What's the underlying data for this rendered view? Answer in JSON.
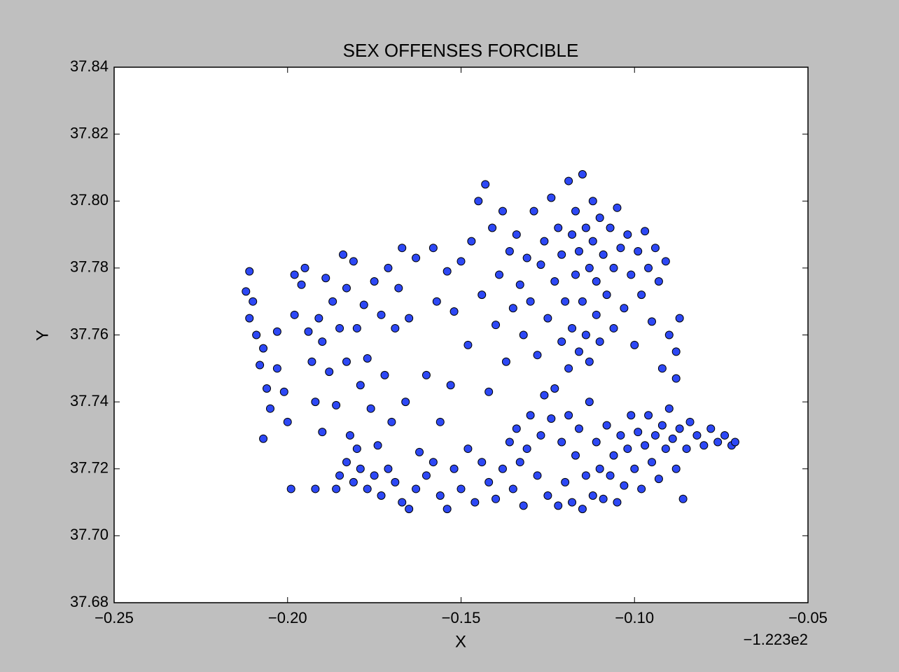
{
  "chart_data": {
    "type": "scatter",
    "title": "SEX OFFENSES FORCIBLE",
    "x_label": "X",
    "y_label": "Y",
    "x_offset_label": "−1.223e2",
    "color": "#2d48f5",
    "xlim": [
      -0.25,
      -0.05
    ],
    "xticks": [
      {
        "value": -0.25,
        "label": "−0.25"
      },
      {
        "value": -0.2,
        "label": "−0.20"
      },
      {
        "value": -0.15,
        "label": "−0.15"
      },
      {
        "value": -0.1,
        "label": "−0.10"
      },
      {
        "value": -0.05,
        "label": "−0.05"
      }
    ],
    "ylim": [
      37.68,
      37.84
    ],
    "yticks": [
      37.68,
      {
        "value": 37.7,
        "label": "37.70"
      },
      37.72,
      37.74,
      37.76,
      37.78,
      {
        "value": 37.8,
        "label": "37.80"
      },
      37.82,
      37.84
    ],
    "x": [
      -0.211,
      -0.212,
      -0.21,
      -0.211,
      -0.209,
      -0.207,
      -0.208,
      -0.206,
      -0.205,
      -0.207,
      -0.203,
      -0.203,
      -0.201,
      -0.2,
      -0.199,
      -0.198,
      -0.198,
      -0.196,
      -0.195,
      -0.194,
      -0.193,
      -0.192,
      -0.192,
      -0.191,
      -0.19,
      -0.19,
      -0.189,
      -0.188,
      -0.187,
      -0.186,
      -0.185,
      -0.184,
      -0.183,
      -0.183,
      -0.182,
      -0.181,
      -0.18,
      -0.179,
      -0.178,
      -0.177,
      -0.176,
      -0.175,
      -0.174,
      -0.173,
      -0.172,
      -0.171,
      -0.17,
      -0.169,
      -0.168,
      -0.167,
      -0.166,
      -0.165,
      -0.163,
      -0.162,
      -0.16,
      -0.158,
      -0.157,
      -0.156,
      -0.154,
      -0.153,
      -0.152,
      -0.15,
      -0.148,
      -0.147,
      -0.145,
      -0.144,
      -0.143,
      -0.142,
      -0.141,
      -0.14,
      -0.139,
      -0.138,
      -0.137,
      -0.136,
      -0.135,
      -0.134,
      -0.133,
      -0.132,
      -0.131,
      -0.13,
      -0.129,
      -0.128,
      -0.127,
      -0.126,
      -0.125,
      -0.124,
      -0.123,
      -0.122,
      -0.121,
      -0.121,
      -0.12,
      -0.119,
      -0.119,
      -0.118,
      -0.118,
      -0.117,
      -0.117,
      -0.116,
      -0.116,
      -0.115,
      -0.115,
      -0.114,
      -0.114,
      -0.113,
      -0.113,
      -0.112,
      -0.112,
      -0.111,
      -0.111,
      -0.11,
      -0.11,
      -0.109,
      -0.108,
      -0.107,
      -0.106,
      -0.106,
      -0.105,
      -0.104,
      -0.103,
      -0.102,
      -0.101,
      -0.1,
      -0.099,
      -0.098,
      -0.097,
      -0.096,
      -0.095,
      -0.094,
      -0.093,
      -0.092,
      -0.091,
      -0.09,
      -0.088,
      -0.087,
      -0.088,
      -0.16,
      -0.158,
      -0.156,
      -0.154,
      -0.152,
      -0.15,
      -0.148,
      -0.146,
      -0.144,
      -0.142,
      -0.14,
      -0.138,
      -0.136,
      -0.135,
      -0.134,
      -0.133,
      -0.132,
      -0.131,
      -0.13,
      -0.128,
      -0.127,
      -0.126,
      -0.125,
      -0.124,
      -0.123,
      -0.122,
      -0.121,
      -0.12,
      -0.119,
      -0.118,
      -0.117,
      -0.116,
      -0.115,
      -0.114,
      -0.113,
      -0.112,
      -0.111,
      -0.11,
      -0.109,
      -0.108,
      -0.107,
      -0.106,
      -0.105,
      -0.104,
      -0.103,
      -0.102,
      -0.101,
      -0.1,
      -0.099,
      -0.098,
      -0.097,
      -0.096,
      -0.095,
      -0.094,
      -0.093,
      -0.092,
      -0.091,
      -0.09,
      -0.089,
      -0.088,
      -0.087,
      -0.086,
      -0.085,
      -0.084,
      -0.082,
      -0.08,
      -0.078,
      -0.076,
      -0.074,
      -0.072,
      -0.071,
      -0.185,
      -0.183,
      -0.181,
      -0.179,
      -0.177,
      -0.175,
      -0.173,
      -0.171,
      -0.169,
      -0.167,
      -0.165,
      -0.163,
      -0.18,
      -0.186
    ],
    "values": [
      37.779,
      37.773,
      37.77,
      37.765,
      37.76,
      37.756,
      37.751,
      37.744,
      37.738,
      37.729,
      37.75,
      37.761,
      37.743,
      37.734,
      37.714,
      37.766,
      37.778,
      37.775,
      37.78,
      37.761,
      37.752,
      37.74,
      37.714,
      37.765,
      37.758,
      37.731,
      37.777,
      37.749,
      37.77,
      37.739,
      37.762,
      37.784,
      37.774,
      37.752,
      37.73,
      37.782,
      37.762,
      37.745,
      37.769,
      37.753,
      37.738,
      37.776,
      37.727,
      37.766,
      37.748,
      37.78,
      37.734,
      37.762,
      37.774,
      37.786,
      37.74,
      37.765,
      37.783,
      37.725,
      37.748,
      37.786,
      37.77,
      37.734,
      37.779,
      37.745,
      37.767,
      37.782,
      37.757,
      37.788,
      37.8,
      37.772,
      37.805,
      37.743,
      37.792,
      37.763,
      37.778,
      37.797,
      37.752,
      37.785,
      37.768,
      37.79,
      37.775,
      37.76,
      37.783,
      37.77,
      37.797,
      37.754,
      37.781,
      37.788,
      37.765,
      37.801,
      37.776,
      37.792,
      37.758,
      37.784,
      37.77,
      37.806,
      37.75,
      37.79,
      37.762,
      37.778,
      37.797,
      37.755,
      37.785,
      37.808,
      37.77,
      37.792,
      37.76,
      37.78,
      37.752,
      37.8,
      37.788,
      37.766,
      37.776,
      37.795,
      37.758,
      37.784,
      37.772,
      37.792,
      37.78,
      37.762,
      37.798,
      37.786,
      37.768,
      37.79,
      37.778,
      37.757,
      37.785,
      37.772,
      37.791,
      37.78,
      37.764,
      37.786,
      37.776,
      37.75,
      37.782,
      37.76,
      37.755,
      37.765,
      37.747,
      37.718,
      37.722,
      37.712,
      37.708,
      37.72,
      37.714,
      37.726,
      37.71,
      37.722,
      37.716,
      37.711,
      37.72,
      37.728,
      37.714,
      37.732,
      37.722,
      37.709,
      37.726,
      37.736,
      37.718,
      37.73,
      37.742,
      37.712,
      37.735,
      37.744,
      37.709,
      37.728,
      37.716,
      37.736,
      37.71,
      37.724,
      37.732,
      37.708,
      37.718,
      37.74,
      37.712,
      37.728,
      37.72,
      37.711,
      37.733,
      37.718,
      37.724,
      37.71,
      37.73,
      37.715,
      37.726,
      37.736,
      37.72,
      37.731,
      37.714,
      37.727,
      37.736,
      37.722,
      37.73,
      37.717,
      37.733,
      37.726,
      37.738,
      37.729,
      37.72,
      37.732,
      37.711,
      37.726,
      37.734,
      37.73,
      37.727,
      37.732,
      37.728,
      37.73,
      37.727,
      37.728,
      37.718,
      37.722,
      37.716,
      37.72,
      37.714,
      37.718,
      37.712,
      37.72,
      37.716,
      37.71,
      37.708,
      37.714,
      37.726,
      37.714
    ]
  }
}
